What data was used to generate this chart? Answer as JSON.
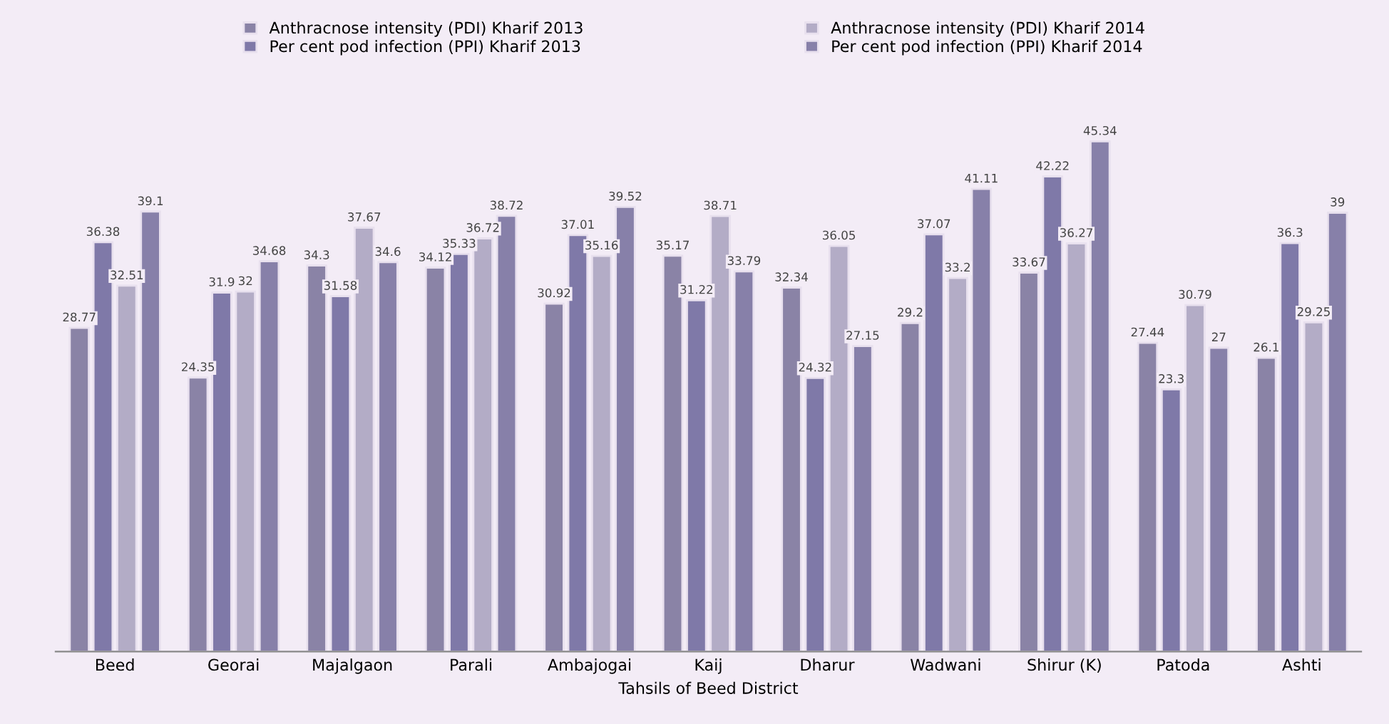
{
  "chart_data": {
    "type": "bar",
    "xlabel": "Tahsils of Beed District",
    "categories": [
      "Beed",
      "Georai",
      "Majalgaon",
      "Parali",
      "Ambajogai",
      "Kaij",
      "Dharur",
      "Wadwani",
      "Shirur (K)",
      "Patoda",
      "Ashti"
    ],
    "series": [
      {
        "name": "Anthracnose intensity (PDI) Kharif 2013",
        "color": "#8a83a6",
        "values": [
          28.77,
          24.35,
          34.3,
          34.12,
          30.92,
          35.17,
          32.34,
          29.2,
          33.67,
          27.44,
          26.1
        ]
      },
      {
        "name": "Per cent pod infection (PPI) Kharif 2013",
        "color": "#7f79a8",
        "values": [
          36.38,
          31.9,
          31.58,
          35.33,
          37.01,
          31.22,
          24.32,
          37.07,
          42.22,
          23.3,
          36.3
        ]
      },
      {
        "name": "Anthracnose intensity (PDI) Kharif 2014",
        "color": "#b3acc6",
        "values": [
          32.51,
          32,
          37.67,
          36.72,
          35.16,
          38.71,
          36.05,
          33.2,
          36.27,
          30.79,
          29.25
        ]
      },
      {
        "name": "Per cent pod infection (PPI) Kharif 2014",
        "color": "#8780a9",
        "values": [
          39.1,
          34.68,
          34.6,
          38.72,
          39.52,
          33.79,
          27.15,
          41.11,
          45.34,
          27,
          39
        ]
      }
    ],
    "data_labels": true,
    "legend": "top",
    "grid": false,
    "tick_labels": "x"
  }
}
